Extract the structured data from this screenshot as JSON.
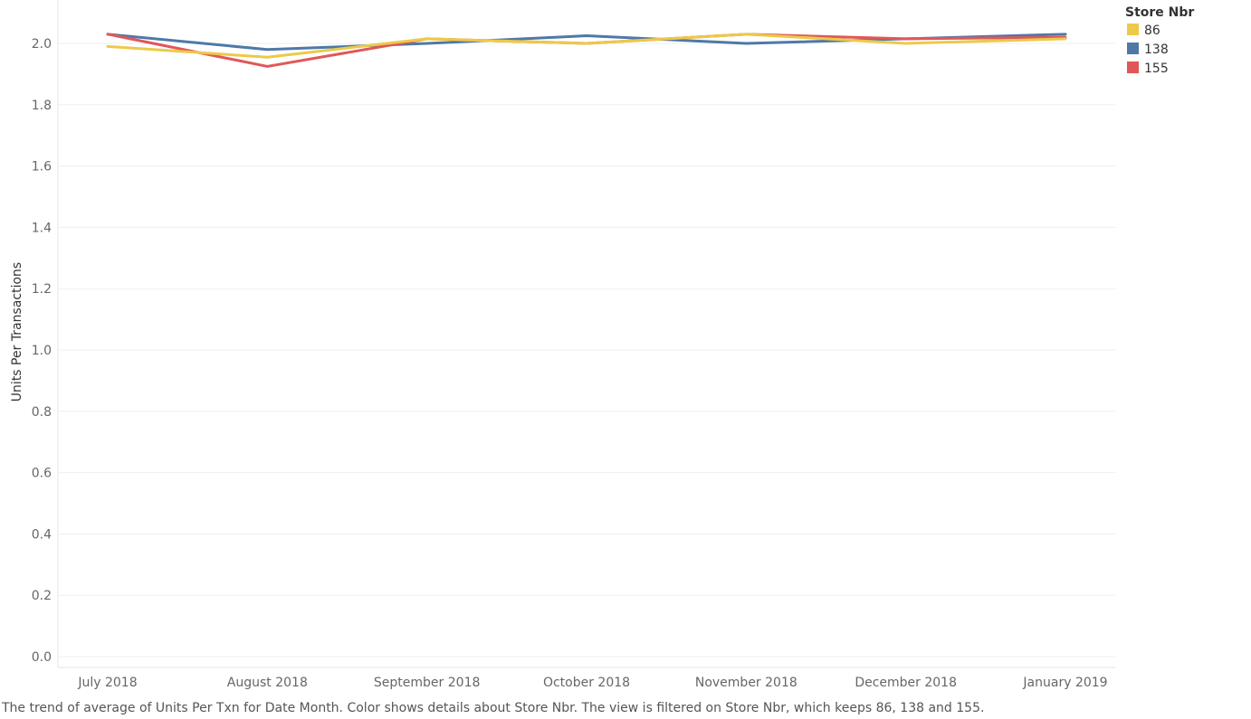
{
  "chart_data": {
    "type": "line",
    "categories": [
      "July 2018",
      "August 2018",
      "September 2018",
      "October 2018",
      "November 2018",
      "December 2018",
      "January 2019"
    ],
    "series": [
      {
        "name": "86",
        "color": "#edc948",
        "values": [
          1.99,
          1.955,
          2.015,
          2.0,
          2.03,
          2.0,
          2.015
        ]
      },
      {
        "name": "138",
        "color": "#4e79a7",
        "values": [
          2.03,
          1.98,
          2.0,
          2.025,
          2.0,
          2.015,
          2.03
        ]
      },
      {
        "name": "155",
        "color": "#e15759",
        "values": [
          2.03,
          1.925,
          2.015,
          2.0,
          2.03,
          2.015,
          2.02
        ]
      }
    ],
    "ylabel": "Units Per Transactions",
    "ylim": [
      0,
      2.0
    ],
    "yticks": [
      "0.0",
      "0.2",
      "0.4",
      "0.6",
      "0.8",
      "1.0",
      "1.2",
      "1.4",
      "1.6",
      "1.8",
      "2.0"
    ],
    "legend_title": "Store Nbr",
    "legend_placement": "top-right",
    "grid": true
  },
  "caption": "The trend of average of Units Per Txn for Date Month.  Color shows details about Store Nbr. The view is filtered on Store Nbr, which keeps 86, 138 and 155."
}
